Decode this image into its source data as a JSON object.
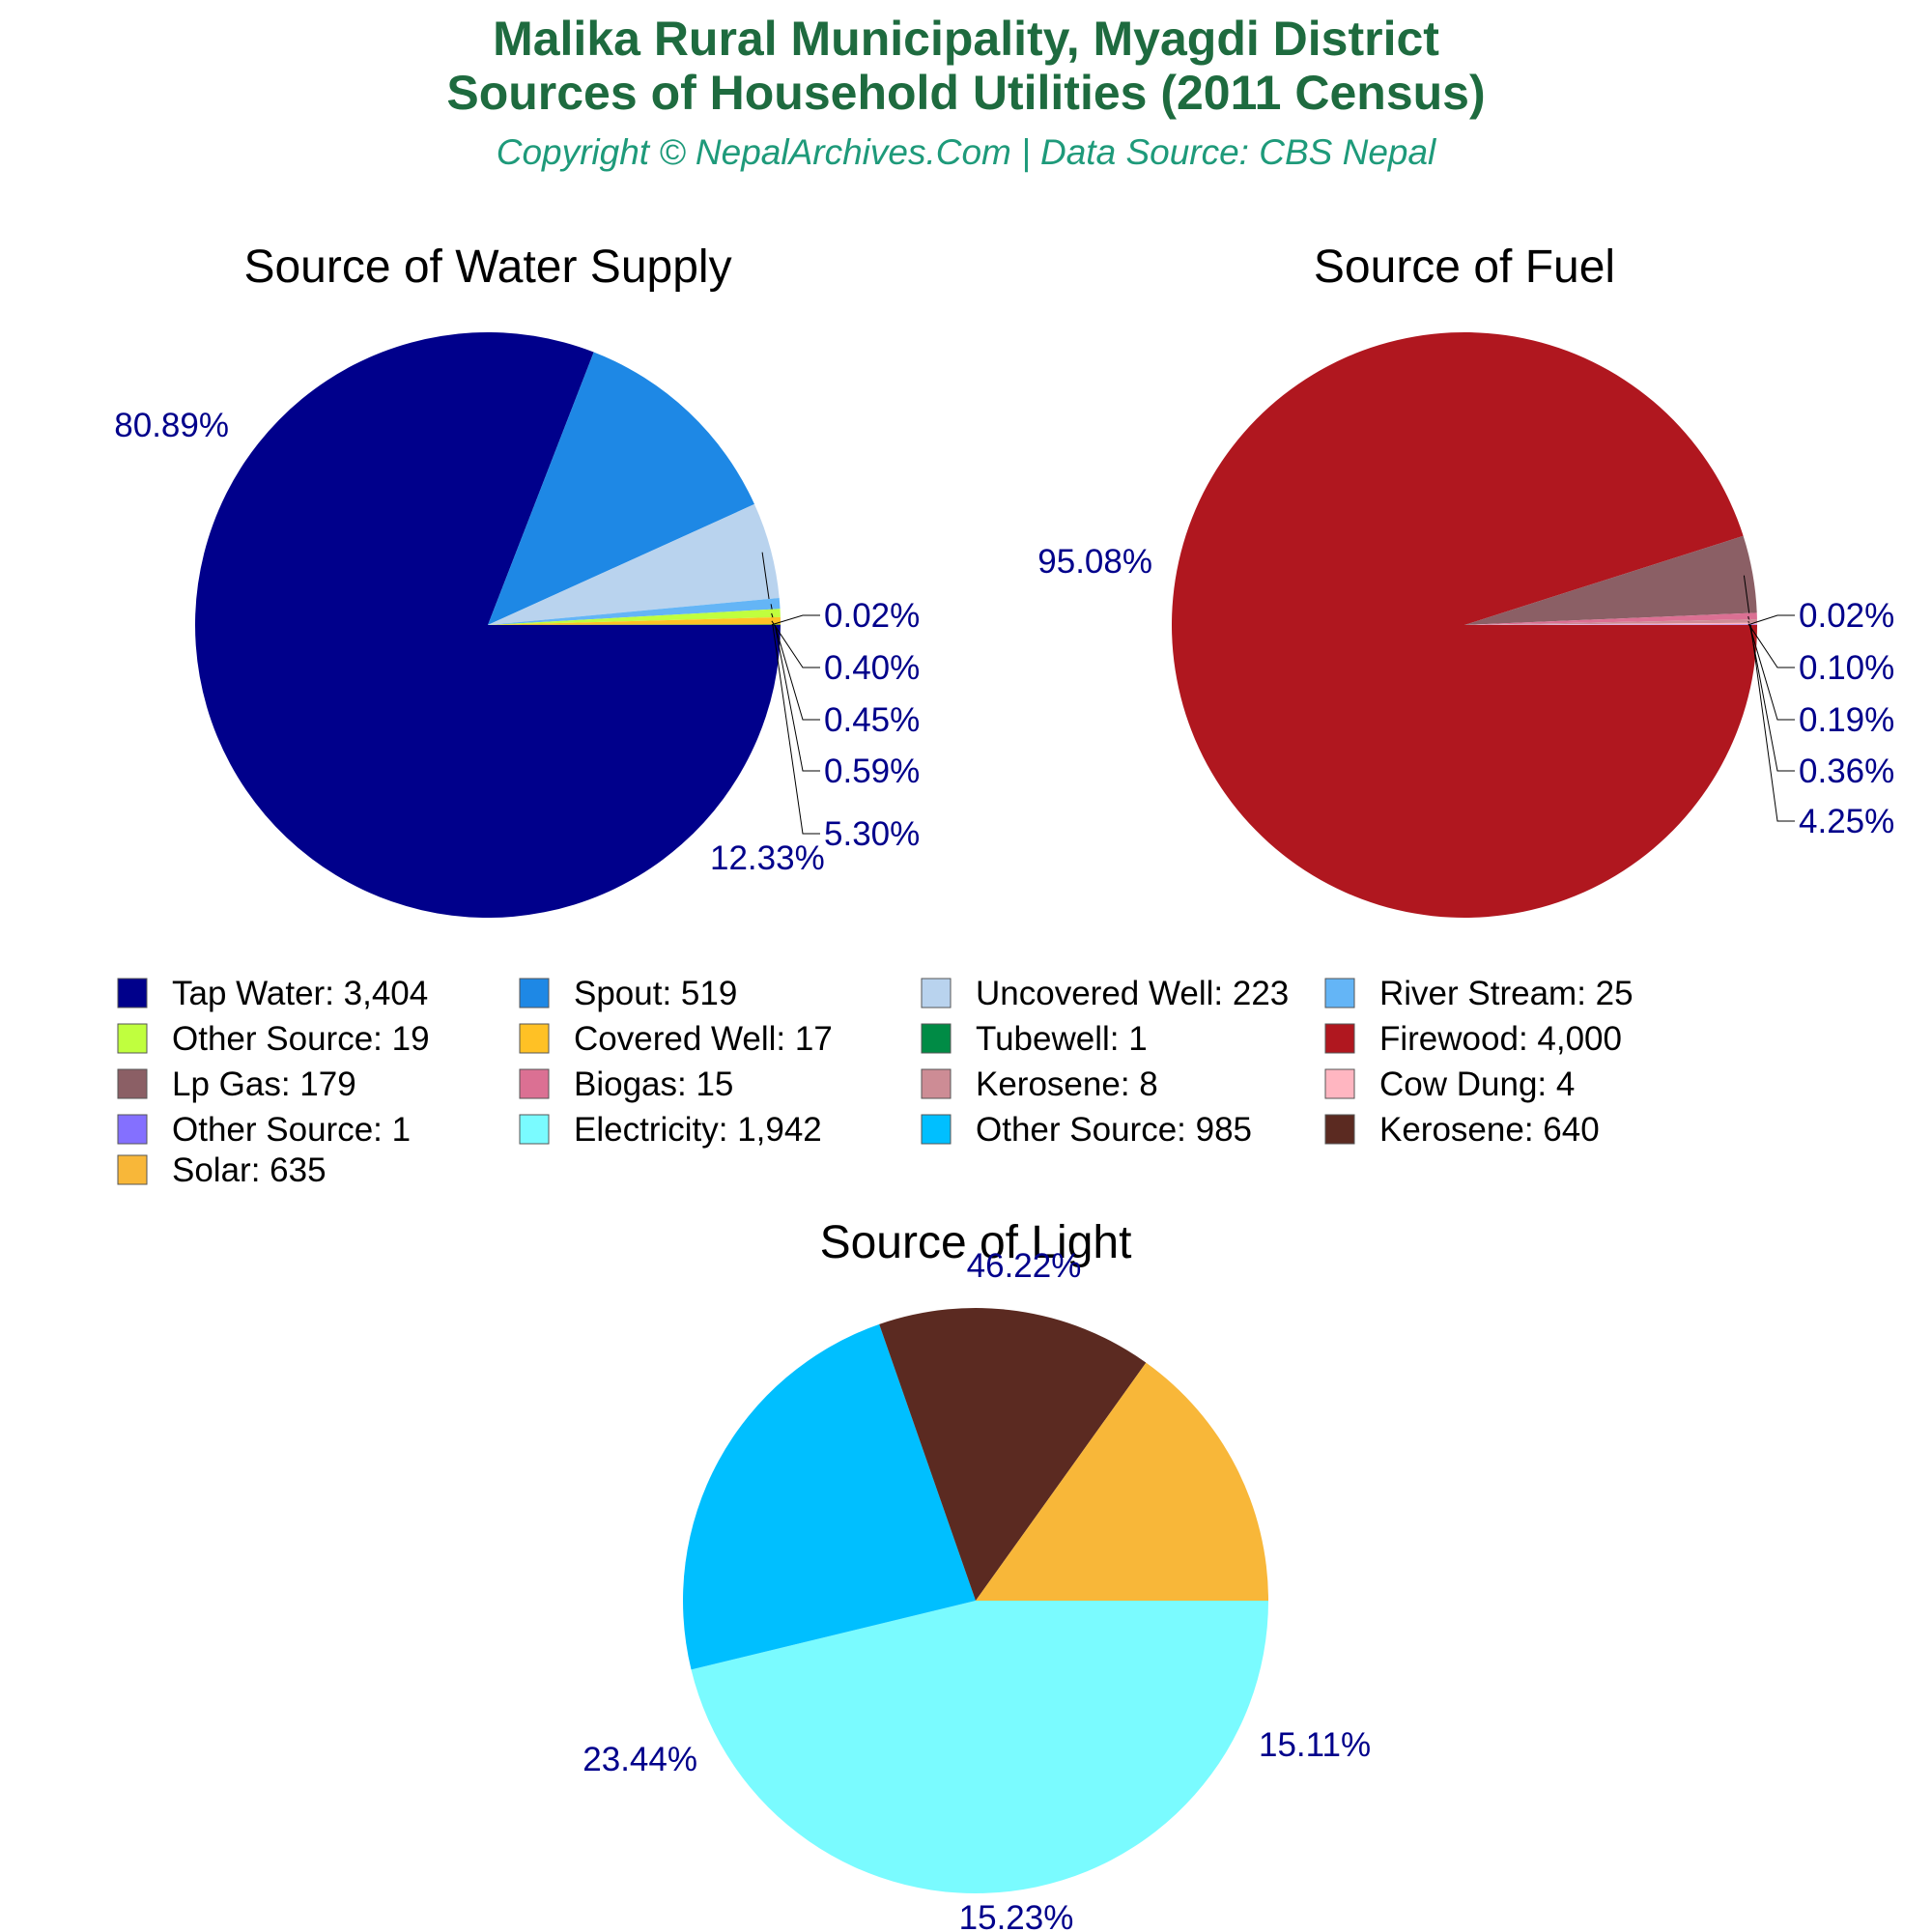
{
  "header": {
    "title_line1": "Malika Rural Municipality, Myagdi District",
    "title_line2": "Sources of Household Utilities (2011 Census)",
    "subtitle": "Copyright © NepalArchives.Com | Data Source: CBS Nepal"
  },
  "chart_data": [
    {
      "type": "pie",
      "title": "Source of Water Supply",
      "slices": [
        {
          "label": "Tap Water",
          "value": 3404,
          "percent_label": "80.89%",
          "color": "#00008b"
        },
        {
          "label": "Spout",
          "value": 519,
          "percent_label": "12.33%",
          "color": "#1e88e5"
        },
        {
          "label": "Uncovered Well",
          "value": 223,
          "percent_label": "5.30%",
          "color": "#b9d3ee"
        },
        {
          "label": "River Stream",
          "value": 25,
          "percent_label": "0.59%",
          "color": "#64b5f6"
        },
        {
          "label": "Other Source",
          "value": 19,
          "percent_label": "0.45%",
          "color": "#c0ff3e"
        },
        {
          "label": "Covered Well",
          "value": 17,
          "percent_label": "0.40%",
          "color": "#ffc125"
        },
        {
          "label": "Tubewell",
          "value": 1,
          "percent_label": "0.02%",
          "color": "#008b45"
        }
      ]
    },
    {
      "type": "pie",
      "title": "Source of Fuel",
      "slices": [
        {
          "label": "Firewood",
          "value": 4000,
          "percent_label": "95.08%",
          "color": "#b0171f"
        },
        {
          "label": "Lp Gas",
          "value": 179,
          "percent_label": "4.25%",
          "color": "#8b5f65"
        },
        {
          "label": "Biogas",
          "value": 15,
          "percent_label": "0.36%",
          "color": "#db7093"
        },
        {
          "label": "Kerosene",
          "value": 8,
          "percent_label": "0.19%",
          "color": "#cd8c95"
        },
        {
          "label": "Cow Dung",
          "value": 4,
          "percent_label": "0.10%",
          "color": "#ffb6c1"
        },
        {
          "label": "Other Source",
          "value": 1,
          "percent_label": "0.02%",
          "color": "#8470ff"
        }
      ]
    },
    {
      "type": "pie",
      "title": "Source of Light",
      "slices": [
        {
          "label": "Electricity",
          "value": 1942,
          "percent_label": "46.22%",
          "color": "#7afbff"
        },
        {
          "label": "Other Source",
          "value": 985,
          "percent_label": "23.44%",
          "color": "#00bfff"
        },
        {
          "label": "Kerosene",
          "value": 640,
          "percent_label": "15.23%",
          "color": "#5b2a21"
        },
        {
          "label": "Solar",
          "value": 635,
          "percent_label": "15.11%",
          "color": "#f8b739"
        }
      ]
    }
  ],
  "legend": {
    "placement": "center, between top and bottom charts",
    "items": [
      {
        "text": "Tap Water: 3,404",
        "color": "#00008b"
      },
      {
        "text": "Spout: 519",
        "color": "#1e88e5"
      },
      {
        "text": "Uncovered Well: 223",
        "color": "#b9d3ee"
      },
      {
        "text": "River Stream: 25",
        "color": "#64b5f6"
      },
      {
        "text": "Other Source: 19",
        "color": "#c0ff3e"
      },
      {
        "text": "Covered Well: 17",
        "color": "#ffc125"
      },
      {
        "text": "Tubewell: 1",
        "color": "#008b45"
      },
      {
        "text": "Firewood: 4,000",
        "color": "#b0171f"
      },
      {
        "text": "Lp Gas: 179",
        "color": "#8b5f65"
      },
      {
        "text": "Biogas: 15",
        "color": "#db7093"
      },
      {
        "text": "Kerosene: 8",
        "color": "#cd8c95"
      },
      {
        "text": "Cow Dung: 4",
        "color": "#ffb6c1"
      },
      {
        "text": "Other Source: 1",
        "color": "#8470ff"
      },
      {
        "text": "Electricity: 1,942",
        "color": "#7afbff"
      },
      {
        "text": "Other Source: 985",
        "color": "#00bfff"
      },
      {
        "text": "Kerosene: 640",
        "color": "#5b2a21"
      },
      {
        "text": "Solar: 635",
        "color": "#f8b739"
      }
    ]
  },
  "styles": {
    "percent_label_color": "#00008b",
    "chart_title_color": "#000000"
  }
}
